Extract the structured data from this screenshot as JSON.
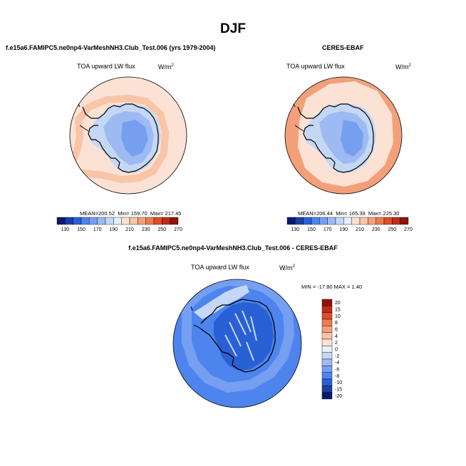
{
  "figure": {
    "title": "DJF"
  },
  "panels": [
    {
      "title": "f.e15a6.FAMIPC5.ne0np4-VarMeshNH3.Club_Test.006 (yrs 1979-2004)",
      "variable": "TOA upward LW flux",
      "units_base": "W/m",
      "units_exp": "2",
      "stats": {
        "mean_label": "MEAN=",
        "mean": "200.52",
        "min_label": "Min=",
        "min": "159.70",
        "max_label": "Max=",
        "max": "217.45"
      }
    },
    {
      "title": "CERES-EBAF",
      "variable": "TOA upward LW flux",
      "units_base": "W/m",
      "units_exp": "2",
      "stats": {
        "mean_label": "MEAN=",
        "mean": "206.44",
        "min_label": "Min=",
        "min": "165.39",
        "max_label": "Max=",
        "max": "225.30"
      }
    },
    {
      "title": "f.e15a6.FAMIPC5.ne0np4-VarMeshNH3.Club_Test.006 - CERES-EBAF",
      "variable": "TOA upward LW flux",
      "units_base": "W/m",
      "units_exp": "2",
      "minmax": "MIN = -17.80  MAX =   1.40"
    }
  ],
  "colorbar_abs": {
    "colors": [
      "#08196b",
      "#1c3ea8",
      "#2a60d6",
      "#4d84ee",
      "#769ff1",
      "#9ebaf2",
      "#c4d8f5",
      "#e6eefa",
      "#fbe2d4",
      "#f9c4a7",
      "#f3a07a",
      "#ec7b52",
      "#dc4e2a",
      "#c02c15",
      "#8e1309"
    ],
    "labels": [
      "130",
      "150",
      "170",
      "190",
      "210",
      "230",
      "250",
      "270"
    ]
  },
  "colorbar_diff": {
    "colors": [
      "#08196b",
      "#1c3ea8",
      "#2a60d6",
      "#4d84ee",
      "#769ff1",
      "#9ebaf2",
      "#c4d8f5",
      "#e6eefa",
      "#fbe2d4",
      "#f9c4a7",
      "#f3a07a",
      "#ec7b52",
      "#dc4e2a",
      "#c02c15",
      "#8e1309"
    ],
    "labels": [
      "20",
      "15",
      "10",
      "8",
      "6",
      "4",
      "2",
      "0",
      "-2",
      "-4",
      "-6",
      "-8",
      "-10",
      "-15",
      "-20"
    ]
  },
  "map_colors": {
    "panel1_ocean": "#fbe2d4",
    "panel1_coast": "#f9c4a7",
    "panel2_ocean": "#f7b894",
    "panel2_outer": "#f3a07a",
    "panel2_inner": "#fbe2d4",
    "land_light": "#c4d8f5",
    "land_mid": "#9ebaf2",
    "land_dark": "#769ff1",
    "diff_ocean": "#4d84ee",
    "diff_ocean_light": "#769ff1",
    "diff_land": "#2a60d6",
    "diff_light": "#c4d8f5"
  }
}
